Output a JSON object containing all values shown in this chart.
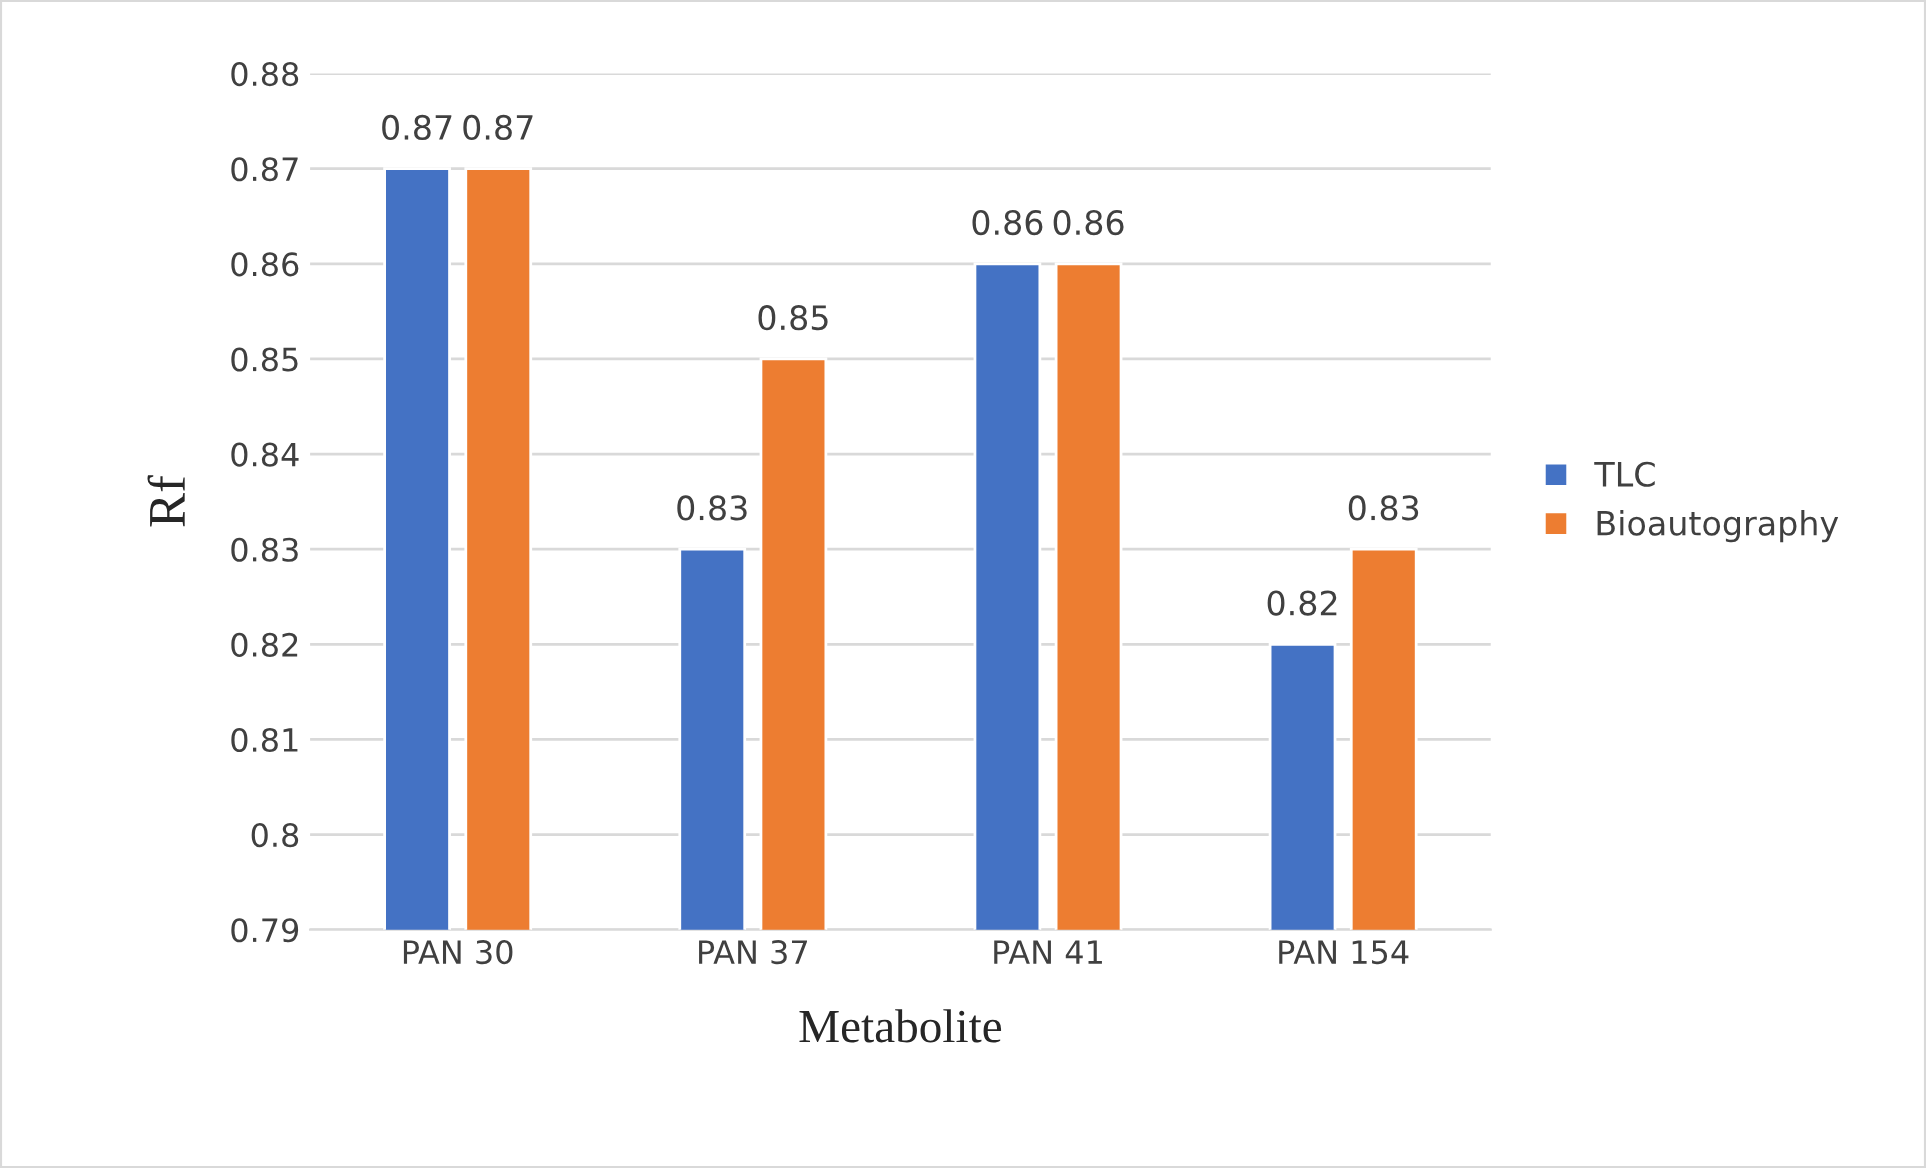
{
  "chart_data": {
    "type": "bar",
    "xlabel": "Metabolite",
    "ylabel": "Rf",
    "categories": [
      "PAN 30",
      "PAN 37",
      "PAN 41",
      "PAN 154"
    ],
    "series": [
      {
        "name": "TLC",
        "color": "#4472c4",
        "values": [
          0.87,
          0.83,
          0.86,
          0.82
        ]
      },
      {
        "name": "Bioautography",
        "color": "#ed7d31",
        "values": [
          0.87,
          0.85,
          0.86,
          0.83
        ]
      }
    ],
    "ylim": [
      0.79,
      0.88
    ],
    "yticks": [
      0.79,
      0.8,
      0.81,
      0.82,
      0.83,
      0.84,
      0.85,
      0.86,
      0.87,
      0.88
    ],
    "grid": "y",
    "legend": "right",
    "data_labels": true
  }
}
